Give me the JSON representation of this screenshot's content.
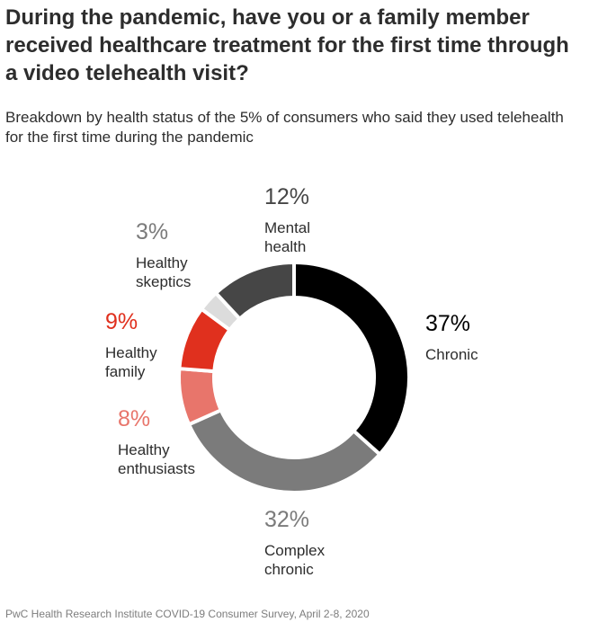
{
  "title": "During the pandemic, have you or a family member received healthcare treatment for the first time through a video telehealth visit?",
  "subtitle": "Breakdown by health status of the 5% of consumers who said they used telehealth for the first time during the pandemic",
  "source": "PwC Health Research Institute COVID-19 Consumer Survey, April 2-8, 2020",
  "chart_data": {
    "type": "pie",
    "variant": "donut",
    "slices": [
      {
        "label": "Chronic",
        "value": 37,
        "pct_text": "37%",
        "color": "#000000",
        "pct_color": "#000000"
      },
      {
        "label": "Complex chronic",
        "value": 32,
        "pct_text": "32%",
        "color": "#7b7b7b",
        "pct_color": "#7b7b7b"
      },
      {
        "label": "Healthy enthusiasts",
        "value": 8,
        "pct_text": "8%",
        "color": "#e8756b",
        "pct_color": "#e8756b"
      },
      {
        "label": "Healthy family",
        "value": 9,
        "pct_text": "9%",
        "color": "#e0301e",
        "pct_color": "#e0301e"
      },
      {
        "label": "Healthy skeptics",
        "value": 3,
        "pct_text": "3%",
        "color": "#dcdcdc",
        "pct_color": "#7b7b7b"
      },
      {
        "label": "Mental health",
        "value": 12,
        "pct_text": "12%",
        "color": "#464646",
        "pct_color": "#464646"
      }
    ]
  },
  "labels": {
    "chronic": {
      "line1": "Chronic",
      "line2": ""
    },
    "complex_chronic": {
      "line1": "Complex",
      "line2": "chronic"
    },
    "healthy_enthusiasts": {
      "line1": "Healthy",
      "line2": "enthusiasts"
    },
    "healthy_family": {
      "line1": "Healthy",
      "line2": "family"
    },
    "healthy_skeptics": {
      "line1": "Healthy",
      "line2": "skeptics"
    },
    "mental_health": {
      "line1": "Mental",
      "line2": "health"
    }
  }
}
